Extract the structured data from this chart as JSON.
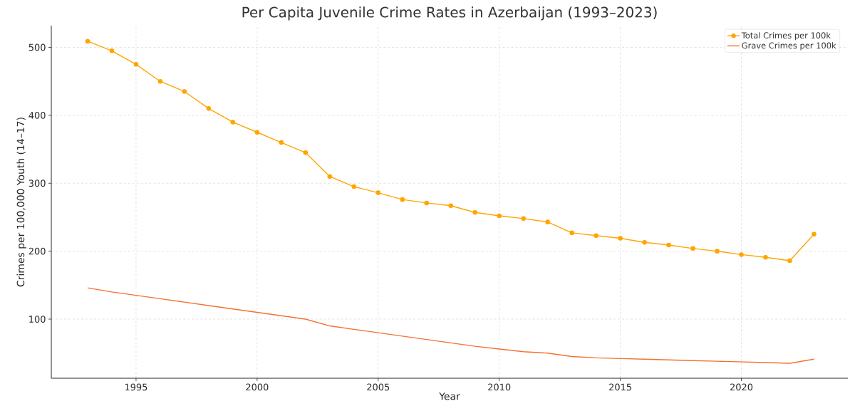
{
  "chart_data": {
    "type": "line",
    "title": "Per Capita Juvenile Crime Rates in Azerbaijan (1993–2023)",
    "xlabel": "Year",
    "ylabel": "Crimes per 100,000 Youth (14–17)",
    "x": [
      1993,
      1994,
      1995,
      1996,
      1997,
      1998,
      1999,
      2000,
      2001,
      2002,
      2003,
      2004,
      2005,
      2006,
      2007,
      2008,
      2009,
      2010,
      2011,
      2012,
      2013,
      2014,
      2015,
      2016,
      2017,
      2018,
      2019,
      2020,
      2021,
      2022,
      2023
    ],
    "series": [
      {
        "name": "Total Crimes per 100k",
        "color": "#ffa500",
        "marker": "circle",
        "values": [
          509,
          495,
          475,
          450,
          435,
          410,
          390,
          375,
          360,
          345,
          310,
          295,
          286,
          276,
          271,
          267,
          257,
          252,
          248,
          243,
          227,
          223,
          219,
          213,
          209,
          204,
          200,
          195,
          191,
          186,
          225
        ]
      },
      {
        "name": "Grave Crimes per 100k",
        "color": "#f4712f",
        "marker": "none",
        "values": [
          146,
          140,
          135,
          130,
          125,
          120,
          115,
          110,
          105,
          100,
          90,
          85,
          80,
          75,
          70,
          65,
          60,
          56,
          52,
          50,
          45,
          43,
          42,
          41,
          40,
          39,
          38,
          37,
          36,
          35,
          41
        ]
      }
    ],
    "xlim": [
      1991.5,
      2024.4
    ],
    "ylim": [
      13,
      532
    ],
    "xticks": [
      1995,
      2000,
      2005,
      2010,
      2015,
      2020
    ],
    "yticks": [
      100,
      200,
      300,
      400,
      500
    ],
    "grid": true,
    "legend": "top right",
    "line_style": "solid"
  }
}
